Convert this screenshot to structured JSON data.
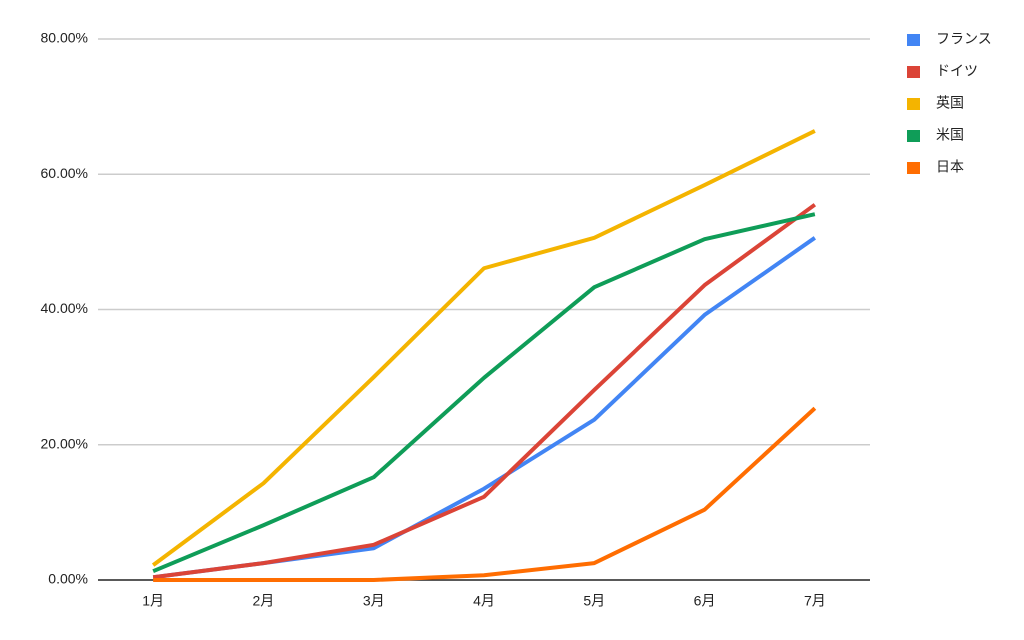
{
  "chart_data": {
    "type": "line",
    "categories": [
      "1月",
      "2月",
      "3月",
      "4月",
      "5月",
      "6月",
      "7月"
    ],
    "series": [
      {
        "name": "フランス",
        "color": "#4285f4",
        "values": [
          0.4,
          2.5,
          4.7,
          13.5,
          23.7,
          39.2,
          50.6
        ]
      },
      {
        "name": "ドイツ",
        "color": "#db4437",
        "values": [
          0.4,
          2.5,
          5.2,
          12.3,
          28.1,
          43.6,
          55.5
        ]
      },
      {
        "name": "英国",
        "color": "#f4b400",
        "values": [
          2.2,
          14.3,
          30.0,
          46.1,
          50.6,
          58.4,
          66.4
        ]
      },
      {
        "name": "米国",
        "color": "#0f9d58",
        "values": [
          1.3,
          8.1,
          15.2,
          29.9,
          43.3,
          50.4,
          54.1
        ]
      },
      {
        "name": "日本",
        "color": "#ff6d01",
        "values": [
          0,
          0,
          0,
          0.7,
          2.5,
          10.4,
          25.4
        ]
      }
    ],
    "ylim": [
      0,
      80
    ],
    "yticks": [
      {
        "value": 0,
        "label": "0.00%"
      },
      {
        "value": 20,
        "label": "20.00%"
      },
      {
        "value": 40,
        "label": "40.00%"
      },
      {
        "value": 60,
        "label": "60.00%"
      },
      {
        "value": 80,
        "label": "80.00%"
      }
    ],
    "grid": true,
    "legend": "right"
  }
}
